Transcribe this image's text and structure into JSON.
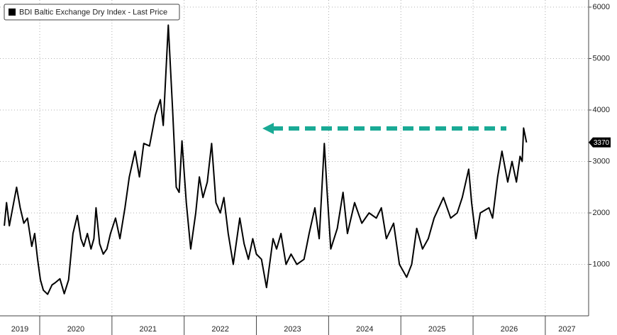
{
  "chart_data": {
    "type": "line",
    "x": [
      2019.51,
      2019.54,
      2019.58,
      2019.64,
      2019.68,
      2019.73,
      2019.78,
      2019.83,
      2019.89,
      2019.93,
      2019.97,
      2020.01,
      2020.05,
      2020.11,
      2020.17,
      2020.22,
      2020.28,
      2020.34,
      2020.4,
      2020.46,
      2020.52,
      2020.57,
      2020.61,
      2020.66,
      2020.71,
      2020.75,
      2020.78,
      2020.83,
      2020.88,
      2020.93,
      2020.98,
      2021.05,
      2021.11,
      2021.18,
      2021.24,
      2021.32,
      2021.38,
      2021.44,
      2021.52,
      2021.6,
      2021.67,
      2021.71,
      2021.78,
      2021.84,
      2021.89,
      2021.93,
      2021.97,
      2022.03,
      2022.09,
      2022.16,
      2022.21,
      2022.26,
      2022.32,
      2022.38,
      2022.44,
      2022.5,
      2022.55,
      2022.61,
      2022.68,
      2022.73,
      2022.77,
      2022.83,
      2022.89,
      2022.95,
      2023.0,
      2023.07,
      2023.14,
      2023.23,
      2023.28,
      2023.34,
      2023.41,
      2023.48,
      2023.56,
      2023.66,
      2023.73,
      2023.81,
      2023.87,
      2023.94,
      2023.98,
      2024.03,
      2024.12,
      2024.2,
      2024.26,
      2024.36,
      2024.46,
      2024.56,
      2024.66,
      2024.73,
      2024.8,
      2024.9,
      2024.98,
      2025.08,
      2025.15,
      2025.22,
      2025.3,
      2025.38,
      2025.46,
      2025.59,
      2025.69,
      2025.78,
      2025.85,
      2025.94,
      2025.98,
      2026.04,
      2026.1,
      2026.22,
      2026.27,
      2026.34,
      2026.4,
      2026.48,
      2026.54,
      2026.6,
      2026.65,
      2026.68,
      2026.7,
      2026.74
    ],
    "series": [
      {
        "name": "BDI Baltic Exchange Dry Index - Last Price",
        "color": "#000000",
        "values": [
          1750,
          2200,
          1750,
          2200,
          2500,
          2100,
          1800,
          1900,
          1350,
          1600,
          1100,
          700,
          500,
          420,
          600,
          650,
          720,
          430,
          700,
          1600,
          1950,
          1500,
          1350,
          1600,
          1300,
          1500,
          2100,
          1400,
          1200,
          1300,
          1600,
          1900,
          1500,
          2100,
          2700,
          3200,
          2700,
          3350,
          3300,
          3900,
          4200,
          3700,
          5650,
          4000,
          2500,
          2400,
          3400,
          2200,
          1300,
          2000,
          2700,
          2300,
          2600,
          3350,
          2200,
          2000,
          2300,
          1600,
          1000,
          1500,
          1900,
          1400,
          1100,
          1500,
          1200,
          1100,
          550,
          1500,
          1300,
          1600,
          1000,
          1200,
          1000,
          1100,
          1600,
          2100,
          1500,
          3350,
          2400,
          1300,
          1700,
          2400,
          1600,
          2200,
          1800,
          2000,
          1900,
          2100,
          1500,
          1800,
          1000,
          750,
          1000,
          1700,
          1300,
          1500,
          1900,
          2300,
          1900,
          2000,
          2300,
          2850,
          2200,
          1500,
          2000,
          2100,
          1900,
          2700,
          3200,
          2600,
          3000,
          2600,
          3100,
          3000,
          3650,
          3370
        ]
      }
    ],
    "xlim": [
      2019.45,
      2027.6
    ],
    "xticks": [
      2019,
      2020,
      2021,
      2022,
      2023,
      2024,
      2025,
      2026,
      2027
    ],
    "ylim": [
      0,
      6000
    ],
    "yticks": [
      1000,
      2000,
      3000,
      4000,
      5000,
      6000
    ],
    "grid": true
  }
}
